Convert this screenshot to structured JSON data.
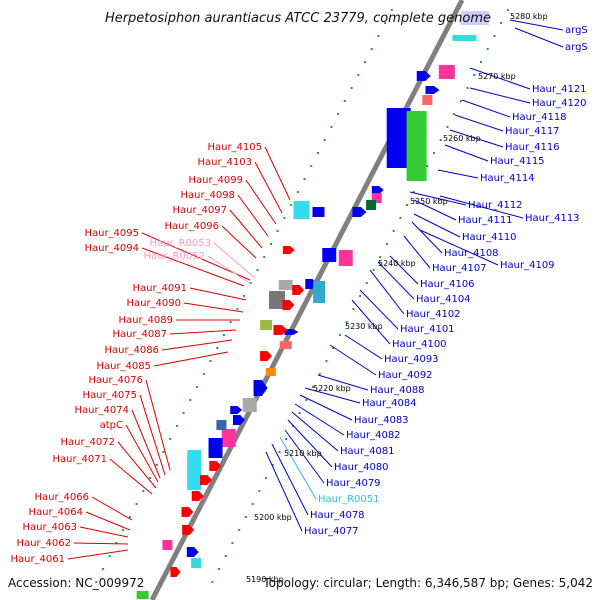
{
  "title": "Herpetosiphon aurantiacus ATCC 23779, complete genome",
  "footer": {
    "accession": "Accession: NC_009972",
    "topology": "Topology: circular; Length: 6,346,587 bp; Genes: 5,042"
  },
  "colors": {
    "left_label": "#dd0000",
    "right_label": "#0000cc",
    "rna_left": "#ff99cc",
    "rna_right": "#33bbdd",
    "axis": "#808080",
    "tick": "#339933"
  },
  "kbp_labels": [
    "5190 kbp",
    "5200 kbp",
    "5210 kbp",
    "5220 kbp",
    "5230 kbp",
    "5240 kbp",
    "5250 kbp",
    "5260 kbp",
    "5270 kbp",
    "5280 kbp"
  ],
  "left_labels": [
    {
      "text": "Haur_4105",
      "kind": "gene"
    },
    {
      "text": "Haur_4103",
      "kind": "gene"
    },
    {
      "text": "Haur_4099",
      "kind": "gene"
    },
    {
      "text": "Haur_4098",
      "kind": "gene"
    },
    {
      "text": "Haur_4097",
      "kind": "gene"
    },
    {
      "text": "Haur_4096",
      "kind": "gene"
    },
    {
      "text": "Haur_4095",
      "kind": "gene"
    },
    {
      "text": "Haur_4094",
      "kind": "gene"
    },
    {
      "text": "Haur_R0053",
      "kind": "rna"
    },
    {
      "text": "Haur_R0052",
      "kind": "rna"
    },
    {
      "text": "Haur_4091",
      "kind": "gene"
    },
    {
      "text": "Haur_4090",
      "kind": "gene"
    },
    {
      "text": "Haur_4089",
      "kind": "gene"
    },
    {
      "text": "Haur_4087",
      "kind": "gene"
    },
    {
      "text": "Haur_4086",
      "kind": "gene"
    },
    {
      "text": "Haur_4085",
      "kind": "gene"
    },
    {
      "text": "Haur_4076",
      "kind": "gene"
    },
    {
      "text": "Haur_4075",
      "kind": "gene"
    },
    {
      "text": "Haur_4074",
      "kind": "gene"
    },
    {
      "text": "atpC",
      "kind": "gene"
    },
    {
      "text": "Haur_4072",
      "kind": "gene"
    },
    {
      "text": "Haur_4071",
      "kind": "gene"
    },
    {
      "text": "Haur_4066",
      "kind": "gene"
    },
    {
      "text": "Haur_4064",
      "kind": "gene"
    },
    {
      "text": "Haur_4063",
      "kind": "gene"
    },
    {
      "text": "Haur_4062",
      "kind": "gene"
    },
    {
      "text": "Haur_4061",
      "kind": "gene"
    }
  ],
  "right_labels": [
    {
      "text": "argS",
      "kind": "gene"
    },
    {
      "text": "argS",
      "kind": "gene"
    },
    {
      "text": "Haur_4121",
      "kind": "gene"
    },
    {
      "text": "Haur_4120",
      "kind": "gene"
    },
    {
      "text": "Haur_4118",
      "kind": "gene"
    },
    {
      "text": "Haur_4117",
      "kind": "gene"
    },
    {
      "text": "Haur_4116",
      "kind": "gene"
    },
    {
      "text": "Haur_4115",
      "kind": "gene"
    },
    {
      "text": "Haur_4114",
      "kind": "gene"
    },
    {
      "text": "Haur_4112",
      "kind": "gene"
    },
    {
      "text": "Haur_4113",
      "kind": "gene"
    },
    {
      "text": "Haur_4111",
      "kind": "gene"
    },
    {
      "text": "Haur_4110",
      "kind": "gene"
    },
    {
      "text": "Haur_4108",
      "kind": "gene"
    },
    {
      "text": "Haur_4109",
      "kind": "gene"
    },
    {
      "text": "Haur_4107",
      "kind": "gene"
    },
    {
      "text": "Haur_4106",
      "kind": "gene"
    },
    {
      "text": "Haur_4104",
      "kind": "gene"
    },
    {
      "text": "Haur_4102",
      "kind": "gene"
    },
    {
      "text": "Haur_4101",
      "kind": "gene"
    },
    {
      "text": "Haur_4100",
      "kind": "gene"
    },
    {
      "text": "Haur_4093",
      "kind": "gene"
    },
    {
      "text": "Haur_4092",
      "kind": "gene"
    },
    {
      "text": "Haur_4088",
      "kind": "gene"
    },
    {
      "text": "Haur_4084",
      "kind": "gene"
    },
    {
      "text": "Haur_4083",
      "kind": "gene"
    },
    {
      "text": "Haur_4082",
      "kind": "gene"
    },
    {
      "text": "Haur_4081",
      "kind": "gene"
    },
    {
      "text": "Haur_4080",
      "kind": "gene"
    },
    {
      "text": "Haur_4079",
      "kind": "gene"
    },
    {
      "text": "Haur_R0051",
      "kind": "rna"
    },
    {
      "text": "Haur_4078",
      "kind": "gene"
    },
    {
      "text": "Haur_4077",
      "kind": "gene"
    }
  ]
}
